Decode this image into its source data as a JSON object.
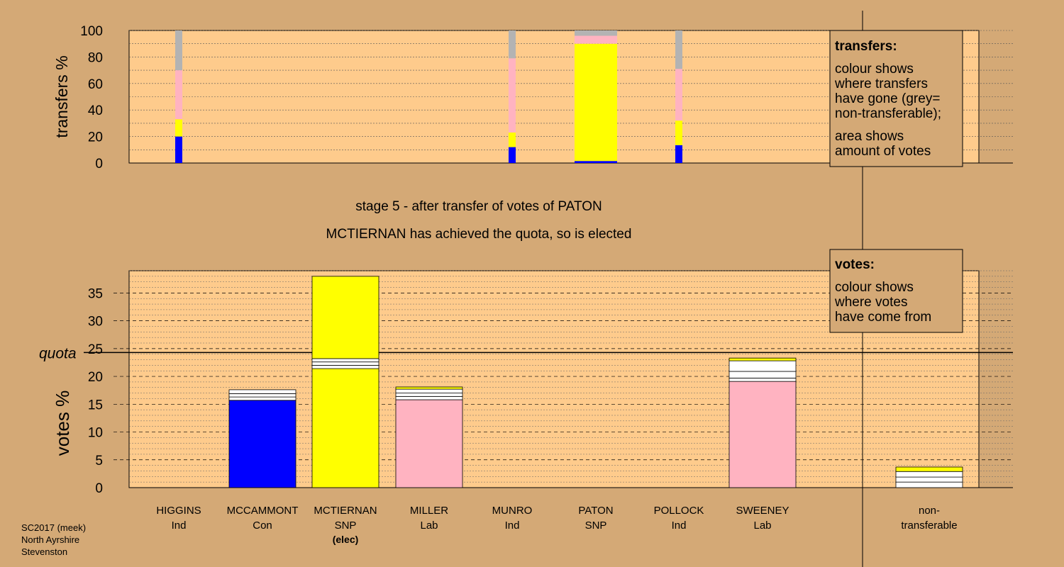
{
  "colors": {
    "background": "#d4a976",
    "plot_bg": "#fecb8c",
    "Con": "#0000ff",
    "SNP": "#ffff00",
    "Lab": "#ffb3c1",
    "nontransferable": "#b3b3b3",
    "white": "#ffffff"
  },
  "titles": {
    "stage": "stage 5 - after transfer of votes of PATON",
    "elected": "MCTIERNAN has achieved the quota, so is elected"
  },
  "footer": [
    "SC2017 (meek)",
    "North Ayrshire",
    "Stevenston"
  ],
  "legend_transfers": {
    "heading": "transfers:",
    "lines": [
      "colour shows",
      "where transfers",
      "have gone (grey=",
      "non-transferable);"
    ],
    "lines2": [
      "area shows",
      "amount of votes"
    ]
  },
  "legend_votes": {
    "heading": "votes:",
    "lines": [
      "colour shows",
      "where votes",
      "have come from"
    ]
  },
  "candidates": [
    {
      "name": "HIGGINS",
      "party": "Ind",
      "note": ""
    },
    {
      "name": "MCCAMMONT",
      "party": "Con",
      "note": ""
    },
    {
      "name": "MCTIERNAN",
      "party": "SNP",
      "note": "(elec)"
    },
    {
      "name": "MILLER",
      "party": "Lab",
      "note": ""
    },
    {
      "name": "MUNRO",
      "party": "Ind",
      "note": ""
    },
    {
      "name": "PATON",
      "party": "SNP",
      "note": ""
    },
    {
      "name": "POLLOCK",
      "party": "Ind",
      "note": ""
    },
    {
      "name": "SWEENEY",
      "party": "Lab",
      "note": ""
    }
  ],
  "nontransferable_label": [
    "non-",
    "transferable"
  ],
  "chart_data": [
    {
      "type": "bar",
      "ylabel": "transfers %",
      "ylim": [
        0,
        100
      ],
      "yticks": [
        0,
        20,
        40,
        60,
        80,
        100
      ],
      "grid": true,
      "categories": [
        "HIGGINS",
        "MCCAMMONT",
        "MCTIERNAN",
        "MILLER",
        "MUNRO",
        "PATON",
        "POLLOCK",
        "SWEENEY"
      ],
      "stacks": [
        {
          "category": "HIGGINS",
          "segments": [
            [
              "Con",
              20
            ],
            [
              "SNP",
              13
            ],
            [
              "Lab",
              37
            ],
            [
              "nontransferable",
              30
            ]
          ]
        },
        {
          "category": "MUNRO",
          "segments": [
            [
              "Con",
              12
            ],
            [
              "SNP",
              11
            ],
            [
              "Lab",
              56
            ],
            [
              "nontransferable",
              21
            ]
          ]
        },
        {
          "category": "PATON",
          "segments": [
            [
              "Con",
              1.5
            ],
            [
              "SNP",
              88.5
            ],
            [
              "Lab",
              6
            ],
            [
              "nontransferable",
              4
            ]
          ]
        },
        {
          "category": "POLLOCK",
          "segments": [
            [
              "Con",
              13.5
            ],
            [
              "SNP",
              18.5
            ],
            [
              "Lab",
              39
            ],
            [
              "nontransferable",
              29
            ]
          ]
        }
      ]
    },
    {
      "type": "bar",
      "ylabel": "votes %",
      "ylim": [
        0,
        39
      ],
      "yticks": [
        0,
        5,
        10,
        15,
        20,
        25,
        30,
        35
      ],
      "quota": 24.3,
      "quota_label": "quota",
      "grid": true,
      "categories": [
        "HIGGINS",
        "MCCAMMONT",
        "MCTIERNAN",
        "MILLER",
        "MUNRO",
        "PATON",
        "POLLOCK",
        "SWEENEY",
        "non-transferable"
      ],
      "stacks": [
        {
          "category": "HIGGINS",
          "segments": []
        },
        {
          "category": "MCCAMMONT",
          "segments": [
            [
              "Con",
              15.7
            ],
            [
              "white",
              0.6
            ],
            [
              "white",
              0.6
            ],
            [
              "white",
              0.7
            ]
          ]
        },
        {
          "category": "MCTIERNAN",
          "segments": [
            [
              "SNP",
              21.4
            ],
            [
              "white",
              0.6
            ],
            [
              "white",
              0.6
            ],
            [
              "white",
              0.6
            ],
            [
              "SNP",
              14.8
            ]
          ]
        },
        {
          "category": "MILLER",
          "segments": [
            [
              "Lab",
              15.8
            ],
            [
              "white",
              0.6
            ],
            [
              "white",
              0.6
            ],
            [
              "white",
              0.7
            ],
            [
              "SNP",
              0.4
            ]
          ]
        },
        {
          "category": "MUNRO",
          "segments": []
        },
        {
          "category": "PATON",
          "segments": []
        },
        {
          "category": "POLLOCK",
          "segments": []
        },
        {
          "category": "SWEENEY",
          "segments": [
            [
              "Lab",
              19.1
            ],
            [
              "white",
              0.6
            ],
            [
              "white",
              1.2
            ],
            [
              "white",
              1.9
            ],
            [
              "SNP",
              0.5
            ]
          ]
        },
        {
          "category": "non-transferable",
          "segments": [
            [
              "white",
              1.0
            ],
            [
              "white",
              0.9
            ],
            [
              "white",
              1.0
            ],
            [
              "SNP",
              0.8
            ]
          ]
        }
      ]
    }
  ]
}
